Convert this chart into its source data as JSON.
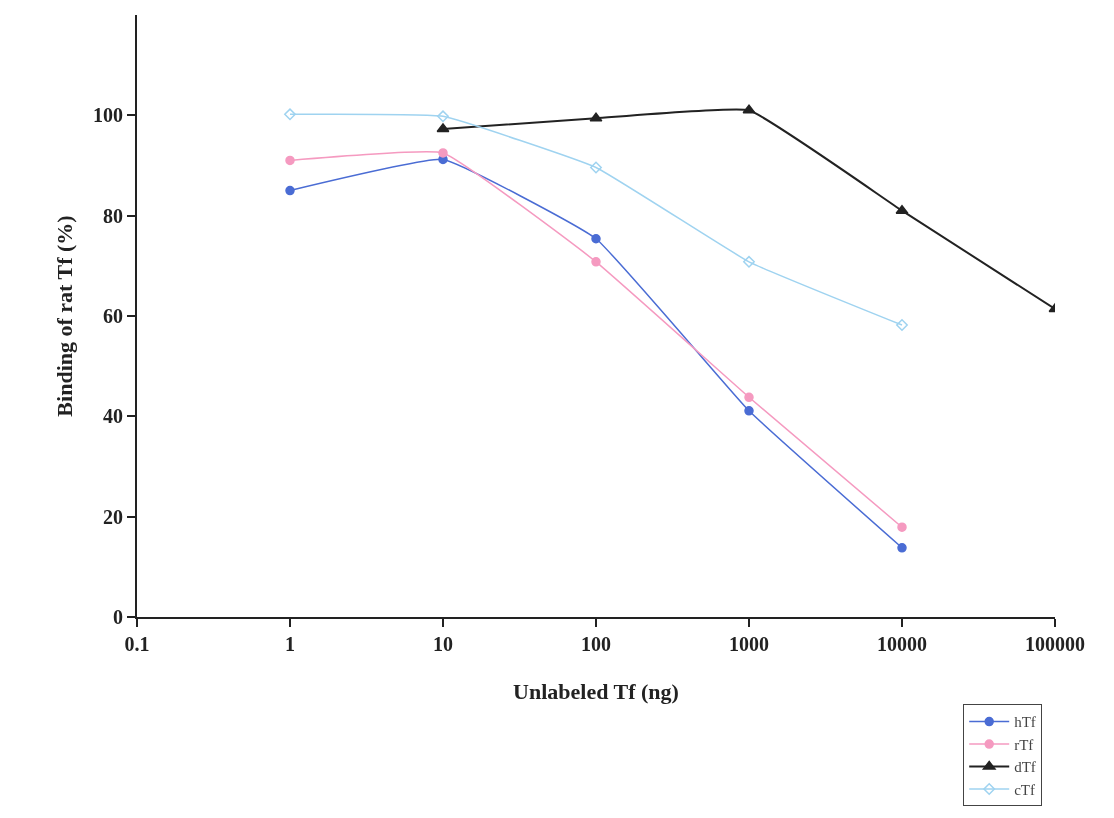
{
  "chart_data": {
    "type": "line",
    "xlabel": "Unlabeled Tf (ng)",
    "ylabel": "Binding of rat Tf (%)",
    "log": "x",
    "xlim": [
      0.1,
      100000
    ],
    "xticks": [
      0.1,
      1,
      10,
      100,
      1000,
      10000,
      100000
    ],
    "ylim": [
      0,
      120
    ],
    "yticks": [
      0,
      20,
      40,
      60,
      80,
      100
    ],
    "legend": "bottom right",
    "series": [
      {
        "name": "hTf",
        "color": "#4a6cd4",
        "marker": "circle",
        "x": [
          1,
          10,
          100,
          1000,
          10000
        ],
        "values": [
          85,
          91.2,
          75.4,
          41.1,
          13.8
        ]
      },
      {
        "name": "rTf",
        "color": "#f59ac0",
        "marker": "circle",
        "x": [
          1,
          10,
          100,
          1000,
          10000
        ],
        "values": [
          91,
          92.5,
          70.8,
          43.8,
          17.9
        ]
      },
      {
        "name": "dTf",
        "color": "#222222",
        "marker": "triangle",
        "x": [
          10,
          100,
          1000,
          10000,
          100000
        ],
        "values": [
          97.3,
          99.4,
          101,
          81,
          61.4
        ]
      },
      {
        "name": "cTf",
        "color": "#9fd3f0",
        "marker": "diamond",
        "x": [
          1,
          10,
          100,
          1000,
          10000
        ],
        "values": [
          100.2,
          99.8,
          89.6,
          70.8,
          58.2
        ]
      }
    ]
  }
}
